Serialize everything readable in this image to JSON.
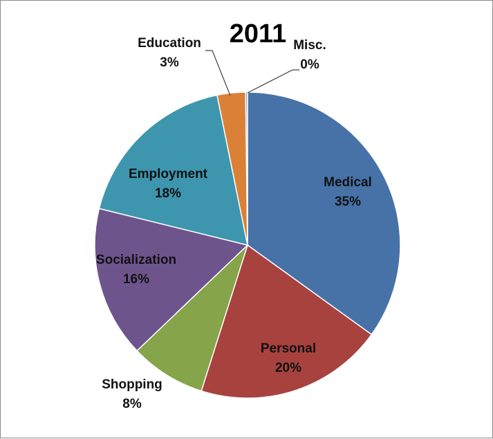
{
  "chart_data": {
    "type": "pie",
    "title": "2011",
    "slices": [
      {
        "label": "Medical",
        "value": 35,
        "display": "35%",
        "color": "#4672A8"
      },
      {
        "label": "Personal",
        "value": 20,
        "display": "20%",
        "color": "#A8423F"
      },
      {
        "label": "Shopping",
        "value": 8,
        "display": "8%",
        "color": "#86A44A"
      },
      {
        "label": "Socialization",
        "value": 16,
        "display": "16%",
        "color": "#6E548D"
      },
      {
        "label": "Employment",
        "value": 18,
        "display": "18%",
        "color": "#3D96AE"
      },
      {
        "label": "Education",
        "value": 3,
        "display": "3%",
        "color": "#DA8137"
      },
      {
        "label": "Misc.",
        "value": 0.2,
        "display": "0%",
        "color": "#8EA5CB"
      }
    ],
    "start_angle": "12 o'clock",
    "direction": "clockwise",
    "legend": "none",
    "labels": "category name and percentage"
  }
}
